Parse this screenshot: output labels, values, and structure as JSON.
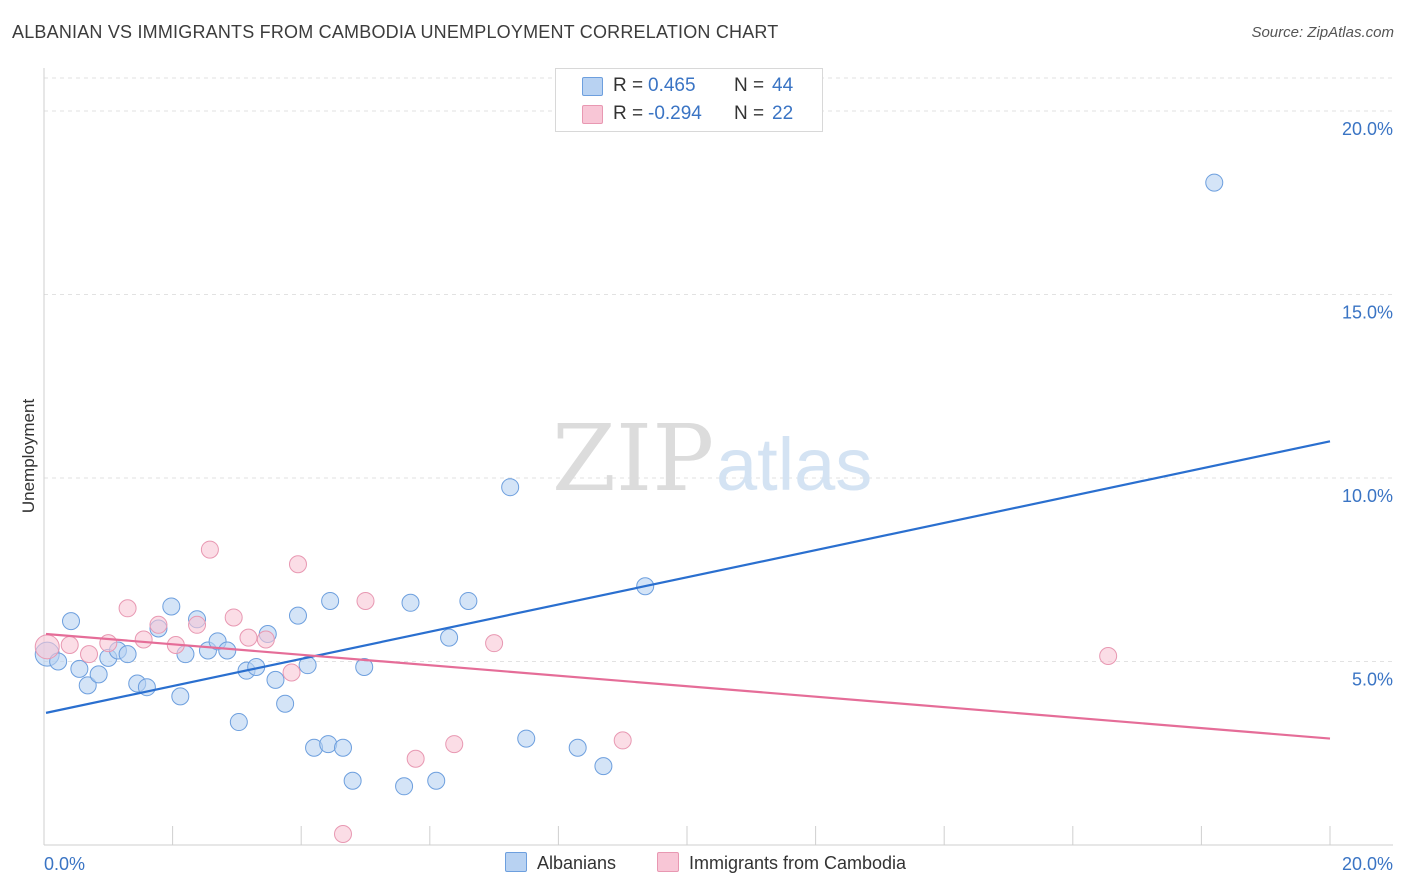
{
  "header": {
    "title": "ALBANIAN VS IMMIGRANTS FROM CAMBODIA UNEMPLOYMENT CORRELATION CHART",
    "source": "Source: ZipAtlas.com"
  },
  "watermark": {
    "zip": "ZIP",
    "atlas": "atlas"
  },
  "legend": {
    "rows": [
      {
        "r_label": "R =",
        "r_value": "0.465",
        "n_label": "N =",
        "n_value": "44"
      },
      {
        "r_label": "R =",
        "r_value": "-0.294",
        "n_label": "N =",
        "n_value": "22"
      }
    ]
  },
  "bottom_legend": {
    "albanians": "Albanians",
    "cambodia": "Immigrants from Cambodia"
  },
  "colors": {
    "blue_fill": "#b8d2f2",
    "blue_stroke": "#6d9fde",
    "blue_line": "#2a6fcf",
    "pink_fill": "#f8c6d6",
    "pink_stroke": "#e898b2",
    "pink_line": "#e56d98",
    "axis_label": "#3a74c4"
  },
  "chart_data": {
    "type": "scatter",
    "title": "ALBANIAN VS IMMIGRANTS FROM CAMBODIA UNEMPLOYMENT CORRELATION CHART",
    "xlabel": "",
    "ylabel": "Unemployment",
    "xlim": [
      0,
      20
    ],
    "ylim": [
      0,
      20.9
    ],
    "x_tick_labels": [
      "0.0%",
      "20.0%"
    ],
    "y_ticks": [
      5,
      10,
      15,
      20
    ],
    "y_tick_labels": [
      "5.0%",
      "10.0%",
      "15.0%",
      "20.0%"
    ],
    "grid": true,
    "series": [
      {
        "name": "Albanians",
        "R": 0.465,
        "N": 44,
        "trend": {
          "x": [
            0,
            20
          ],
          "y": [
            3.6,
            11.0
          ]
        },
        "points": [
          [
            0.05,
            5.2
          ],
          [
            0.22,
            5.0
          ],
          [
            0.42,
            6.1
          ],
          [
            0.55,
            4.8
          ],
          [
            0.68,
            4.35
          ],
          [
            0.85,
            4.65
          ],
          [
            1.0,
            5.1
          ],
          [
            1.15,
            5.3
          ],
          [
            1.3,
            5.2
          ],
          [
            1.45,
            4.4
          ],
          [
            1.6,
            4.3
          ],
          [
            1.78,
            5.9
          ],
          [
            1.98,
            6.5
          ],
          [
            2.12,
            4.05
          ],
          [
            2.2,
            5.2
          ],
          [
            2.38,
            6.15
          ],
          [
            2.55,
            5.3
          ],
          [
            2.7,
            5.55
          ],
          [
            2.85,
            5.3
          ],
          [
            3.03,
            3.35
          ],
          [
            3.15,
            4.75
          ],
          [
            3.3,
            4.85
          ],
          [
            3.48,
            5.75
          ],
          [
            3.6,
            4.5
          ],
          [
            3.75,
            3.85
          ],
          [
            3.95,
            6.25
          ],
          [
            4.1,
            4.9
          ],
          [
            4.2,
            2.65
          ],
          [
            4.42,
            2.75
          ],
          [
            4.45,
            6.65
          ],
          [
            4.65,
            2.65
          ],
          [
            4.8,
            1.75
          ],
          [
            4.98,
            4.85
          ],
          [
            5.6,
            1.6
          ],
          [
            5.7,
            6.6
          ],
          [
            6.1,
            1.75
          ],
          [
            6.3,
            5.65
          ],
          [
            6.6,
            6.65
          ],
          [
            7.25,
            9.75
          ],
          [
            7.5,
            2.9
          ],
          [
            8.3,
            2.65
          ],
          [
            8.7,
            2.15
          ],
          [
            9.35,
            7.05
          ],
          [
            18.2,
            18.05
          ]
        ]
      },
      {
        "name": "Immigrants from Cambodia",
        "R": -0.294,
        "N": 22,
        "trend": {
          "x": [
            0,
            20
          ],
          "y": [
            5.75,
            2.9
          ]
        },
        "points": [
          [
            0.05,
            5.4
          ],
          [
            0.4,
            5.45
          ],
          [
            0.7,
            5.2
          ],
          [
            1.0,
            5.5
          ],
          [
            1.3,
            6.45
          ],
          [
            1.55,
            5.6
          ],
          [
            1.78,
            6.0
          ],
          [
            2.05,
            5.45
          ],
          [
            2.38,
            6.0
          ],
          [
            2.58,
            8.05
          ],
          [
            2.95,
            6.2
          ],
          [
            3.18,
            5.65
          ],
          [
            3.45,
            5.6
          ],
          [
            3.85,
            4.7
          ],
          [
            3.95,
            7.65
          ],
          [
            4.65,
            0.3
          ],
          [
            5.0,
            6.65
          ],
          [
            5.78,
            2.35
          ],
          [
            6.38,
            2.75
          ],
          [
            7.0,
            5.5
          ],
          [
            9.0,
            2.85
          ],
          [
            16.55,
            5.15
          ]
        ]
      }
    ]
  }
}
